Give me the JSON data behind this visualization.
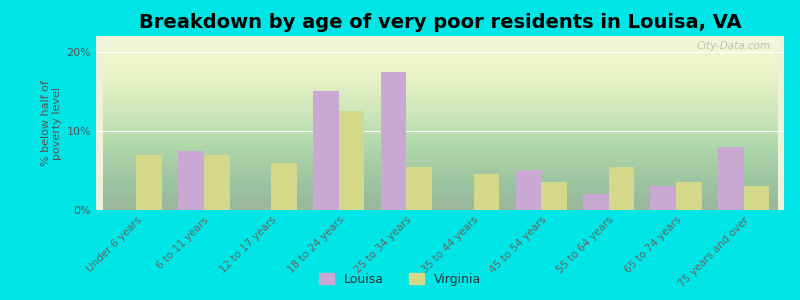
{
  "title": "Breakdown by age of very poor residents in Louisa, VA",
  "ylabel": "% below half of\npoverty level",
  "categories": [
    "Under 6 years",
    "6 to 11 years",
    "12 to 17 years",
    "18 to 24 years",
    "25 to 34 years",
    "35 to 44 years",
    "45 to 54 years",
    "55 to 64 years",
    "65 to 74 years",
    "75 years and over"
  ],
  "louisa_values": [
    0,
    7.5,
    0,
    15,
    17.5,
    0,
    5,
    2,
    3,
    8
  ],
  "virginia_values": [
    7,
    7,
    6,
    12.5,
    5.5,
    4.5,
    3.5,
    5.5,
    3.5,
    3
  ],
  "louisa_color": "#c9a8d4",
  "virginia_color": "#d4d98a",
  "background_color": "#00e5e5",
  "plot_bg_top": "#e8f0d0",
  "plot_bg_bottom": "#f5f8e8",
  "ylim": [
    0,
    22
  ],
  "yticks": [
    0,
    10,
    20
  ],
  "ytick_labels": [
    "0%",
    "10%",
    "20%"
  ],
  "title_fontsize": 14,
  "bar_width": 0.38,
  "watermark": "City-Data.com"
}
